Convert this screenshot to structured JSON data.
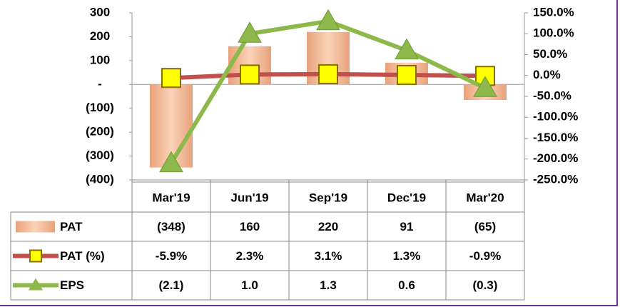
{
  "chart_data": {
    "type": "combo",
    "categories": [
      "Mar'19",
      "Jun'19",
      "Sep'19",
      "Dec'19",
      "Mar'20"
    ],
    "series": [
      {
        "name": "PAT",
        "type": "bar",
        "color": "#f4b183",
        "axis": "y",
        "values": [
          -348,
          160,
          220,
          91,
          -65
        ],
        "value_labels": [
          "(348)",
          "160",
          "220",
          "91",
          "(65)"
        ]
      },
      {
        "name": "PAT (%)",
        "type": "line",
        "color": "#c0504d",
        "marker_color": "#ffff00",
        "axis": "y2",
        "values": [
          -5.9,
          2.3,
          3.1,
          1.3,
          -0.9
        ],
        "value_labels": [
          "-5.9%",
          "2.3%",
          "3.1%",
          "1.3%",
          "-0.9%"
        ]
      },
      {
        "name": "EPS",
        "type": "line",
        "color": "#8db84a",
        "marker_color": "#8db84a",
        "axis": "y2",
        "values": [
          -210,
          100,
          130,
          60,
          -30
        ],
        "value_labels": [
          "(2.1)",
          "1.0",
          "1.3",
          "0.6",
          "(0.3)"
        ]
      }
    ],
    "ylim": [
      -400,
      300
    ],
    "yticks": [
      {
        "value": 300,
        "label": "300"
      },
      {
        "value": 200,
        "label": "200"
      },
      {
        "value": 100,
        "label": "100"
      },
      {
        "value": 0,
        "label": "-"
      },
      {
        "value": -100,
        "label": "(100)"
      },
      {
        "value": -200,
        "label": "(200)"
      },
      {
        "value": -300,
        "label": "(300)"
      },
      {
        "value": -400,
        "label": "(400)"
      }
    ],
    "y2lim": [
      -250,
      150
    ],
    "y2ticks": [
      {
        "value": 150,
        "label": "150.0%"
      },
      {
        "value": 100,
        "label": "100.0%"
      },
      {
        "value": 50,
        "label": "50.0%"
      },
      {
        "value": 0,
        "label": "0.0%"
      },
      {
        "value": -50,
        "label": "-50.0%"
      },
      {
        "value": -100,
        "label": "-100.0%"
      },
      {
        "value": -150,
        "label": "-150.0%"
      },
      {
        "value": -200,
        "label": "-200.0%"
      },
      {
        "value": -250,
        "label": "-250.0%"
      }
    ]
  }
}
